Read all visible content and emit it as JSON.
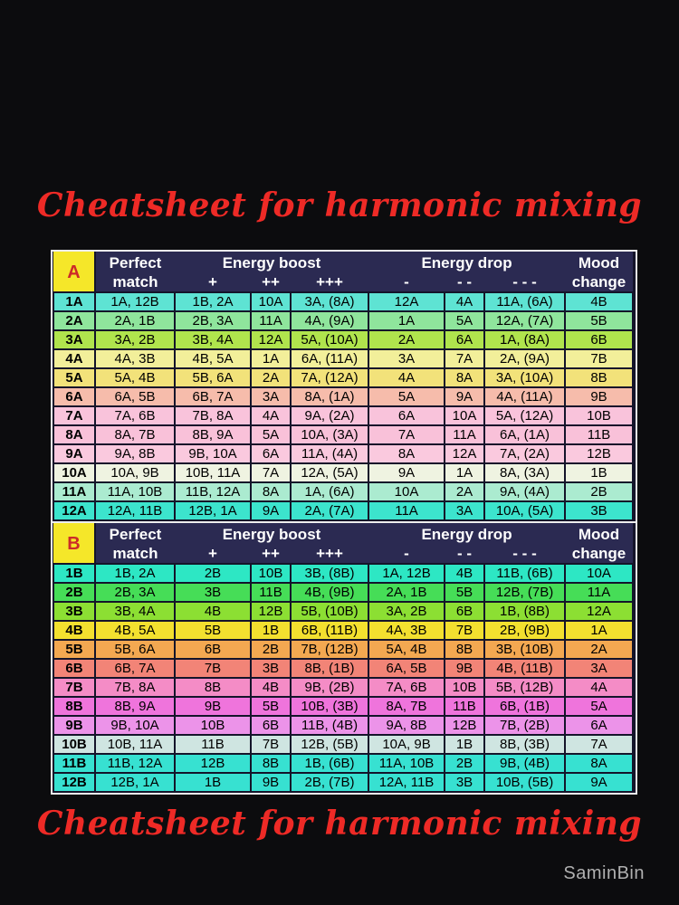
{
  "titles": {
    "top": "Cheatsheet for harmonic mixing",
    "bottom": "Cheatsheet for harmonic mixing"
  },
  "watermark": "SaminBin",
  "colors": {
    "background": "#0c0c0e",
    "title_red": "#ee2a26",
    "header_bg": "#2b2a52",
    "key_bg": "#f5e729",
    "key_letter": "#cc2a28",
    "symbol_blue": "#3fa0f8",
    "cell_border": "#14142a",
    "outer_border": "#ededed",
    "cell_text": "#000000"
  },
  "header": {
    "perfect_line1": "Perfect",
    "perfect_line2": "match",
    "boost": "Energy boost",
    "drop": "Energy drop",
    "mood_line1": "Mood",
    "mood_line2": "change",
    "boost_symbols": [
      "+",
      "++",
      "+++"
    ],
    "drop_symbols": [
      "-",
      "- -",
      "- - -"
    ]
  },
  "tables": [
    {
      "key_label": "A",
      "rows": [
        {
          "key": "1A",
          "color": "#5ee3d3",
          "cells": [
            "1A, 12B",
            "1B, 2A",
            "10A",
            "3A, (8A)",
            "12A",
            "4A",
            "11A, (6A)",
            "4B"
          ]
        },
        {
          "key": "2A",
          "color": "#8fe59c",
          "cells": [
            "2A, 1B",
            "2B, 3A",
            "11A",
            "4A, (9A)",
            "1A",
            "5A",
            "12A, (7A)",
            "5B"
          ]
        },
        {
          "key": "3A",
          "color": "#b0e44d",
          "cells": [
            "3A, 2B",
            "3B, 4A",
            "12A",
            "5A, (10A)",
            "2A",
            "6A",
            "1A, (8A)",
            "6B"
          ]
        },
        {
          "key": "4A",
          "color": "#f2ef9a",
          "cells": [
            "4A, 3B",
            "4B, 5A",
            "1A",
            "6A, (11A)",
            "3A",
            "7A",
            "2A, (9A)",
            "7B"
          ]
        },
        {
          "key": "5A",
          "color": "#f2e27a",
          "cells": [
            "5A, 4B",
            "5B, 6A",
            "2A",
            "7A, (12A)",
            "4A",
            "8A",
            "3A, (10A)",
            "8B"
          ]
        },
        {
          "key": "6A",
          "color": "#f6bcab",
          "cells": [
            "6A, 5B",
            "6B, 7A",
            "3A",
            "8A, (1A)",
            "5A",
            "9A",
            "4A, (11A)",
            "9B"
          ]
        },
        {
          "key": "7A",
          "color": "#f9c3db",
          "cells": [
            "7A, 6B",
            "7B, 8A",
            "4A",
            "9A, (2A)",
            "6A",
            "10A",
            "5A, (12A)",
            "10B"
          ]
        },
        {
          "key": "8A",
          "color": "#f9c1d9",
          "cells": [
            "8A, 7B",
            "8B, 9A",
            "5A",
            "10A, (3A)",
            "7A",
            "11A",
            "6A, (1A)",
            "11B"
          ]
        },
        {
          "key": "9A",
          "color": "#fac9de",
          "cells": [
            "9A, 8B",
            "9B, 10A",
            "6A",
            "11A, (4A)",
            "8A",
            "12A",
            "7A, (2A)",
            "12B"
          ]
        },
        {
          "key": "10A",
          "color": "#eff3e1",
          "cells": [
            "10A, 9B",
            "10B, 11A",
            "7A",
            "12A, (5A)",
            "9A",
            "1A",
            "8A, (3A)",
            "1B"
          ]
        },
        {
          "key": "11A",
          "color": "#abebd0",
          "cells": [
            "11A, 10B",
            "11B, 12A",
            "8A",
            "1A, (6A)",
            "10A",
            "2A",
            "9A, (4A)",
            "2B"
          ]
        },
        {
          "key": "12A",
          "color": "#3ce4cd",
          "cells": [
            "12A, 11B",
            "12B, 1A",
            "9A",
            "2A, (7A)",
            "11A",
            "3A",
            "10A, (5A)",
            "3B"
          ]
        }
      ]
    },
    {
      "key_label": "B",
      "rows": [
        {
          "key": "1B",
          "color": "#2de7c4",
          "cells": [
            "1B, 2A",
            "2B",
            "10B",
            "3B, (8B)",
            "1A, 12B",
            "4B",
            "11B, (6B)",
            "10A"
          ]
        },
        {
          "key": "2B",
          "color": "#46dd57",
          "cells": [
            "2B, 3A",
            "3B",
            "11B",
            "4B, (9B)",
            "2A, 1B",
            "5B",
            "12B, (7B)",
            "11A"
          ]
        },
        {
          "key": "3B",
          "color": "#8cdf33",
          "cells": [
            "3B, 4A",
            "4B",
            "12B",
            "5B, (10B)",
            "3A, 2B",
            "6B",
            "1B, (8B)",
            "12A"
          ]
        },
        {
          "key": "4B",
          "color": "#f3e02f",
          "cells": [
            "4B, 5A",
            "5B",
            "1B",
            "6B, (11B)",
            "4A, 3B",
            "7B",
            "2B, (9B)",
            "1A"
          ]
        },
        {
          "key": "5B",
          "color": "#f3a851",
          "cells": [
            "5B, 6A",
            "6B",
            "2B",
            "7B, (12B)",
            "5A, 4B",
            "8B",
            "3B, (10B)",
            "2A"
          ]
        },
        {
          "key": "6B",
          "color": "#f28477",
          "cells": [
            "6B, 7A",
            "7B",
            "3B",
            "8B, (1B)",
            "6A, 5B",
            "9B",
            "4B, (11B)",
            "3A"
          ]
        },
        {
          "key": "7B",
          "color": "#f48cc6",
          "cells": [
            "7B, 8A",
            "8B",
            "4B",
            "9B, (2B)",
            "7A, 6B",
            "10B",
            "5B, (12B)",
            "4A"
          ]
        },
        {
          "key": "8B",
          "color": "#ef74dc",
          "cells": [
            "8B, 9A",
            "9B",
            "5B",
            "10B, (3B)",
            "8A, 7B",
            "11B",
            "6B, (1B)",
            "5A"
          ]
        },
        {
          "key": "9B",
          "color": "#ec93e9",
          "cells": [
            "9B, 10A",
            "10B",
            "6B",
            "11B, (4B)",
            "9A, 8B",
            "12B",
            "7B, (2B)",
            "6A"
          ]
        },
        {
          "key": "10B",
          "color": "#cfe5e1",
          "cells": [
            "10B, 11A",
            "11B",
            "7B",
            "12B, (5B)",
            "10A, 9B",
            "1B",
            "8B, (3B)",
            "7A"
          ]
        },
        {
          "key": "11B",
          "color": "#37e1d1",
          "cells": [
            "11B, 12A",
            "12B",
            "8B",
            "1B, (6B)",
            "11A, 10B",
            "2B",
            "9B, (4B)",
            "8A"
          ]
        },
        {
          "key": "12B",
          "color": "#37e1d1",
          "cells": [
            "12B, 1A",
            "1B",
            "9B",
            "2B, (7B)",
            "12A, 11B",
            "3B",
            "10B, (5B)",
            "9A"
          ]
        }
      ]
    }
  ]
}
